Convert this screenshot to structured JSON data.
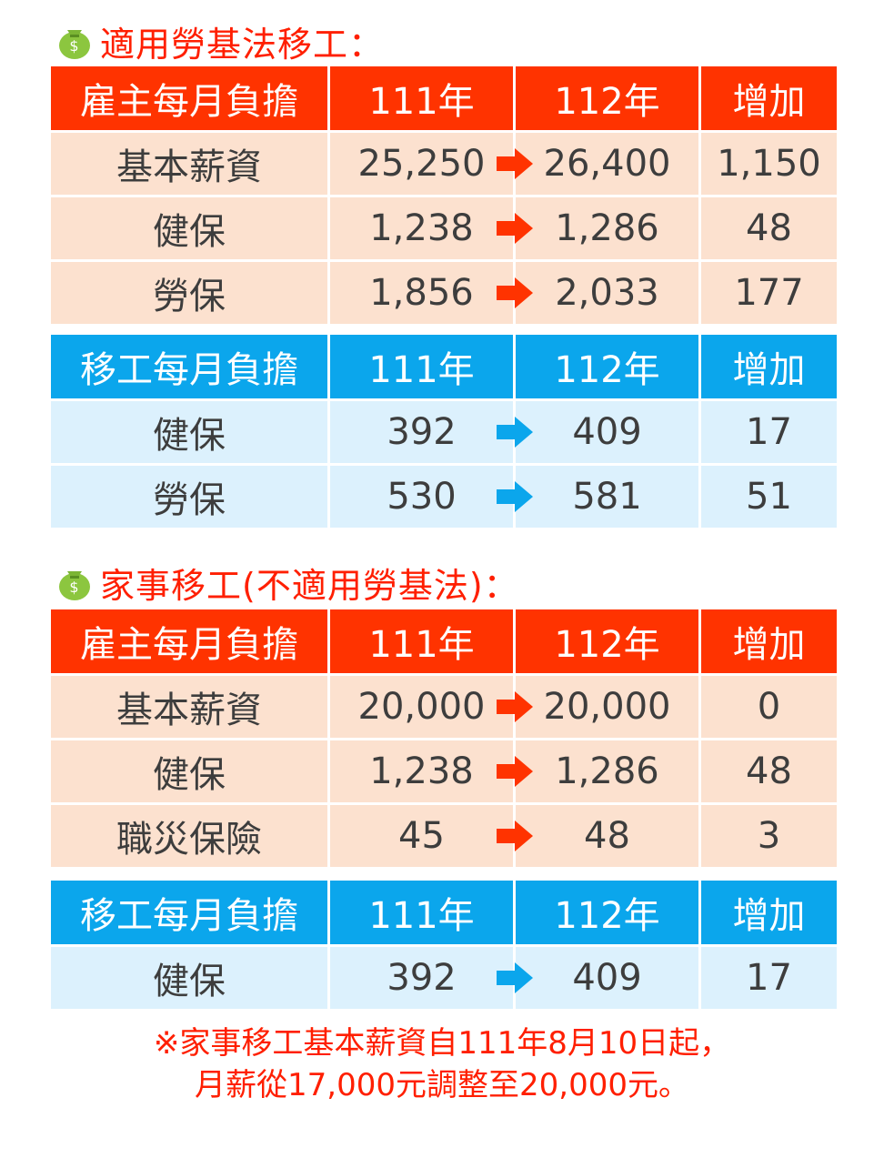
{
  "colors": {
    "red": "#ff3300",
    "blue": "#0ba6ec",
    "peach": "#fce1cf",
    "light_blue": "#dcf1fd",
    "title_red": "#ff1f00"
  },
  "icons": {
    "title_icon": "money-bag-icon",
    "row_arrow": "right-arrow-icon"
  },
  "section1": {
    "title": "適用勞基法移工：",
    "employer": {
      "header": [
        "雇主每月負擔",
        "111年",
        "112年",
        "增加"
      ],
      "rows": [
        [
          "基本薪資",
          "25,250",
          "26,400",
          "1,150"
        ],
        [
          "健保",
          "1,238",
          "1,286",
          "48"
        ],
        [
          "勞保",
          "1,856",
          "2,033",
          "177"
        ]
      ]
    },
    "worker": {
      "header": [
        "移工每月負擔",
        "111年",
        "112年",
        "增加"
      ],
      "rows": [
        [
          "健保",
          "392",
          "409",
          "17"
        ],
        [
          "勞保",
          "530",
          "581",
          "51"
        ]
      ]
    }
  },
  "section2": {
    "title": "家事移工(不適用勞基法)：",
    "employer": {
      "header": [
        "雇主每月負擔",
        "111年",
        "112年",
        "增加"
      ],
      "rows": [
        [
          "基本薪資",
          "20,000",
          "20,000",
          "0"
        ],
        [
          "健保",
          "1,238",
          "1,286",
          "48"
        ],
        [
          "職災保險",
          "45",
          "48",
          "3"
        ]
      ]
    },
    "worker": {
      "header": [
        "移工每月負擔",
        "111年",
        "112年",
        "增加"
      ],
      "rows": [
        [
          "健保",
          "392",
          "409",
          "17"
        ]
      ]
    }
  },
  "note": {
    "line1": "※家事移工基本薪資自111年8月10日起，",
    "line2": "月薪從17,000元調整至20,000元。"
  }
}
